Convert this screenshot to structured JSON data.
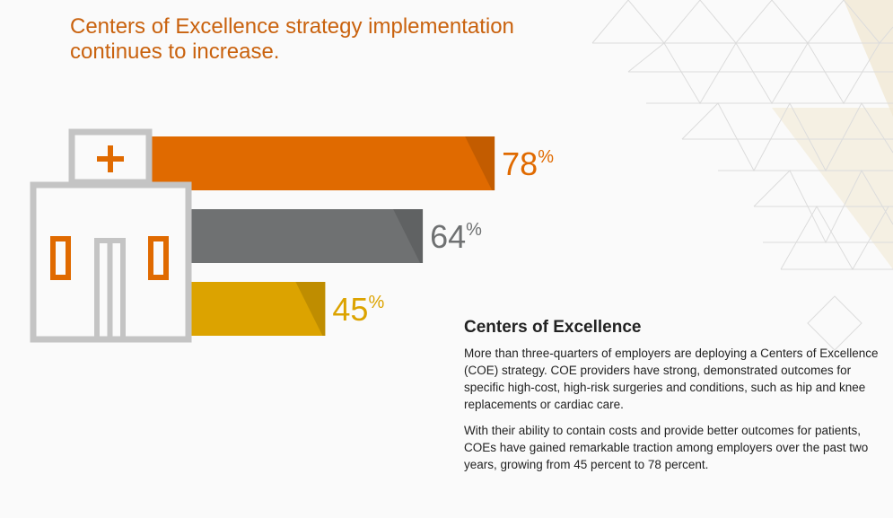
{
  "chart_data": {
    "type": "bar",
    "title": "Centers of Excellence strategy implementation continues to increase.",
    "categories": [
      null,
      null,
      null
    ],
    "values": [
      78,
      64,
      45
    ],
    "value_labels": [
      "78%",
      "64%",
      "45%"
    ],
    "colors": [
      "#e06a00",
      "#6f7172",
      "#dca300"
    ]
  },
  "sidebar": {
    "heading": "Centers of Excellence",
    "paragraphs": [
      "More than three-quarters of employers are deploying a Centers of Excellence (COE) strategy. COE providers have strong, demonstrated outcomes for specific high-cost, high-risk surgeries and conditions, such as hip and knee replacements or cardiac care.",
      "With their ability to contain costs and provide better outcomes for patients, COEs have gained remarkable traction among employers over the past two years, growing from 45 percent to 78 percent."
    ]
  }
}
